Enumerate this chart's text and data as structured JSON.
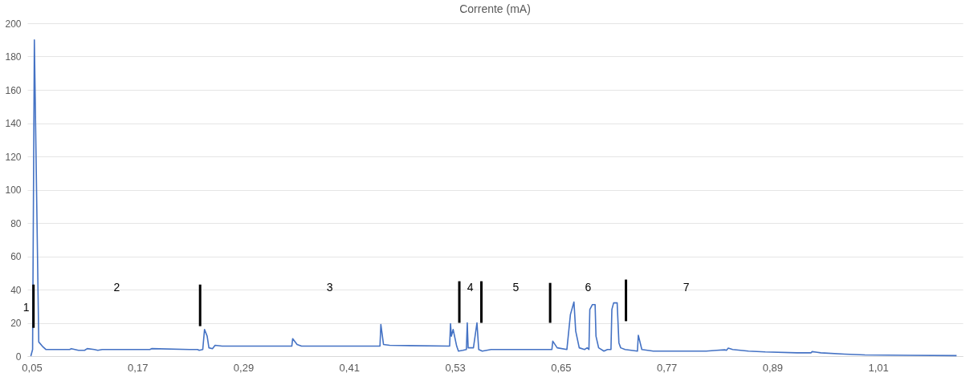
{
  "chart_data": {
    "type": "line",
    "title": "Corrente (mA)",
    "xlim": [
      0.045,
      1.106
    ],
    "xticks": [
      {
        "value": 0.05,
        "label": "0,05"
      },
      {
        "value": 0.17,
        "label": "0,17"
      },
      {
        "value": 0.29,
        "label": "0,29"
      },
      {
        "value": 0.41,
        "label": "0,41"
      },
      {
        "value": 0.53,
        "label": "0,53"
      },
      {
        "value": 0.65,
        "label": "0,65"
      },
      {
        "value": 0.77,
        "label": "0,77"
      },
      {
        "value": 0.89,
        "label": "0,89"
      },
      {
        "value": 1.01,
        "label": "1,01"
      }
    ],
    "ylim": [
      0,
      200
    ],
    "yticks": [
      0,
      20,
      40,
      60,
      80,
      100,
      120,
      140,
      160,
      180,
      200
    ],
    "grid": "y",
    "marker": "none",
    "line_style": "solid",
    "series": [
      {
        "color": "#4472c4",
        "x": [
          0.049,
          0.051,
          0.053,
          0.058,
          0.062,
          0.066,
          0.075,
          0.093,
          0.095,
          0.103,
          0.11,
          0.113,
          0.121,
          0.125,
          0.13,
          0.184,
          0.186,
          0.229,
          0.238,
          0.24,
          0.244,
          0.246,
          0.249,
          0.251,
          0.255,
          0.258,
          0.266,
          0.345,
          0.346,
          0.351,
          0.356,
          0.445,
          0.446,
          0.449,
          0.456,
          0.524,
          0.525,
          0.526,
          0.528,
          0.532,
          0.534,
          0.539,
          0.543,
          0.544,
          0.545,
          0.551,
          0.555,
          0.557,
          0.561,
          0.571,
          0.64,
          0.641,
          0.646,
          0.657,
          0.661,
          0.665,
          0.667,
          0.671,
          0.677,
          0.68,
          0.682,
          0.683,
          0.686,
          0.689,
          0.69,
          0.693,
          0.699,
          0.703,
          0.707,
          0.708,
          0.71,
          0.714,
          0.716,
          0.718,
          0.723,
          0.737,
          0.738,
          0.742,
          0.755,
          0.815,
          0.827,
          0.836,
          0.838,
          0.84,
          0.845,
          0.863,
          0.882,
          0.918,
          0.934,
          0.935,
          0.945,
          0.972,
          0.995,
          1.045,
          1.099
        ],
        "values": [
          0,
          4,
          190,
          8.5,
          6,
          4,
          4,
          4,
          4.5,
          3.5,
          3.5,
          4.5,
          4,
          3.5,
          4,
          4,
          4.5,
          4,
          4,
          3.5,
          4,
          16,
          12,
          5,
          4.5,
          6.5,
          6,
          6,
          10.5,
          7,
          6,
          6,
          19,
          7,
          6.5,
          6,
          19.5,
          12,
          16,
          6,
          3,
          3.5,
          4,
          20,
          5,
          5,
          20,
          4,
          3,
          4,
          4,
          9,
          5,
          4,
          25,
          32.5,
          15,
          5,
          4,
          5,
          4,
          28,
          31,
          31,
          12,
          5,
          3,
          4,
          4,
          28,
          32,
          32,
          8,
          5,
          4,
          3,
          12.5,
          4,
          3,
          3,
          3.5,
          3.8,
          3.5,
          4.8,
          4,
          3,
          2.5,
          2,
          2,
          2.7,
          2,
          1.2,
          0.7,
          0.5,
          0.3
        ]
      },
      {
        "color": "#000000",
        "x": [
          0.052,
          0.052
        ],
        "values": [
          17,
          43
        ]
      },
      {
        "color": "#000000",
        "x": [
          0.241,
          0.241
        ],
        "values": [
          18,
          43
        ]
      },
      {
        "color": "#000000",
        "x": [
          0.535,
          0.535
        ],
        "values": [
          20,
          45
        ]
      },
      {
        "color": "#000000",
        "x": [
          0.56,
          0.56
        ],
        "values": [
          20,
          45
        ]
      },
      {
        "color": "#000000",
        "x": [
          0.638,
          0.638
        ],
        "values": [
          20,
          44
        ]
      },
      {
        "color": "#000000",
        "x": [
          0.724,
          0.724
        ],
        "values": [
          21,
          46
        ]
      }
    ],
    "annotations": [
      "1",
      "2",
      "3",
      "4",
      "5",
      "6",
      "7"
    ]
  }
}
